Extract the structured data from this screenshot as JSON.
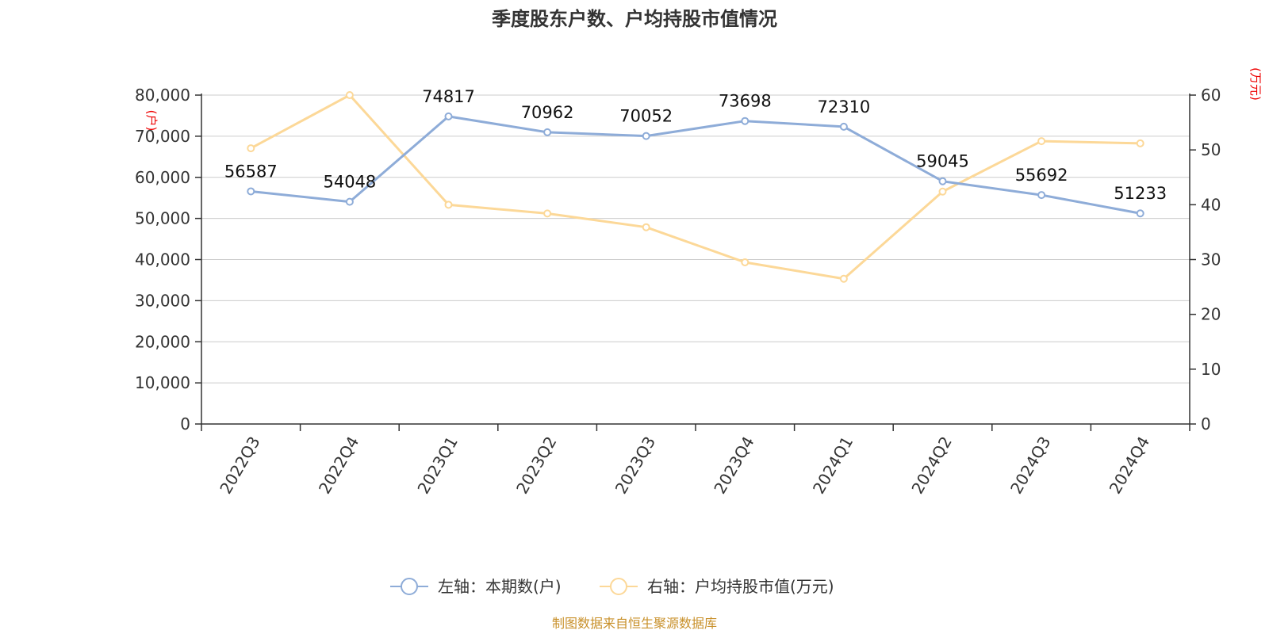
{
  "chart_data": {
    "type": "line",
    "title": "季度股东户数、户均持股市值情况",
    "categories": [
      "2022Q3",
      "2022Q4",
      "2023Q1",
      "2023Q2",
      "2023Q3",
      "2023Q4",
      "2024Q1",
      "2024Q2",
      "2024Q3",
      "2024Q4"
    ],
    "left_axis": {
      "unit_label": "(户)",
      "ylim": [
        0,
        80000
      ],
      "ticks": [
        "0",
        "10,000",
        "20,000",
        "30,000",
        "40,000",
        "50,000",
        "60,000",
        "70,000",
        "80,000"
      ],
      "tick_values": [
        0,
        10000,
        20000,
        30000,
        40000,
        50000,
        60000,
        70000,
        80000
      ]
    },
    "right_axis": {
      "unit_label": "(万元)",
      "ylim": [
        0,
        60
      ],
      "ticks": [
        "0",
        "10",
        "20",
        "30",
        "40",
        "50",
        "60"
      ],
      "tick_values": [
        0,
        10,
        20,
        30,
        40,
        50,
        60
      ]
    },
    "series": [
      {
        "name": "左轴：本期数(户)",
        "axis": "left",
        "color": "#8eacd8",
        "values": [
          56587,
          54048,
          74817,
          70962,
          70052,
          73698,
          72310,
          59045,
          55692,
          51233
        ],
        "data_labels": [
          "56587",
          "54048",
          "74817",
          "70962",
          "70052",
          "73698",
          "72310",
          "59045",
          "55692",
          "51233"
        ]
      },
      {
        "name": "右轴：户均持股市值(万元)",
        "axis": "right",
        "color": "#fcd898",
        "values": [
          50.3,
          60.0,
          40.0,
          38.4,
          35.9,
          29.5,
          26.5,
          42.4,
          51.6,
          51.2
        ]
      }
    ],
    "grid": true,
    "legend_position": "bottom-center"
  },
  "source_text": "制图数据来自恒生聚源数据库"
}
